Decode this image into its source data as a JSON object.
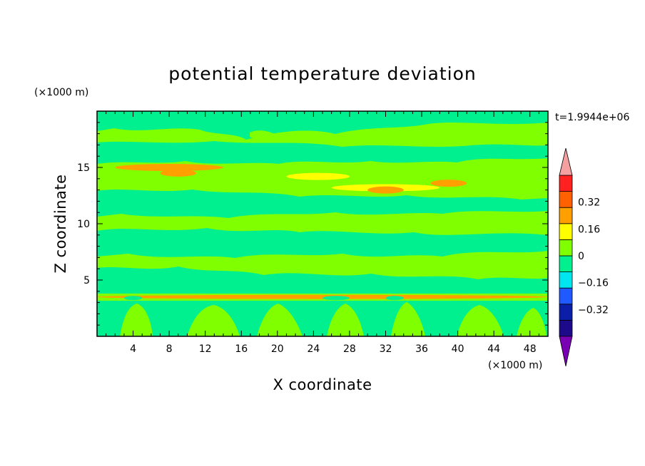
{
  "chart_data": {
    "type": "heatmap",
    "title": "potential temperature deviation",
    "xlabel": "X coordinate",
    "ylabel": "Z coordinate",
    "x_unit": "(×1000 m)",
    "y_unit": "(×1000 m)",
    "time_label": "t=1.9944e+06",
    "xlim": [
      0,
      50
    ],
    "ylim": [
      0,
      20
    ],
    "x_ticks": [
      4,
      8,
      12,
      16,
      20,
      24,
      28,
      32,
      36,
      40,
      44,
      48
    ],
    "y_ticks": [
      5,
      10,
      15
    ],
    "colorbar": {
      "levels": [
        -0.48,
        -0.4,
        -0.32,
        -0.24,
        -0.16,
        -0.08,
        0,
        0.08,
        0.16,
        0.24,
        0.32,
        0.4,
        0.48
      ],
      "labeled_levels": [
        0.32,
        0.16,
        0,
        -0.16,
        -0.32
      ],
      "colors": [
        "#1c0a8a",
        "#0a1ea8",
        "#1e5aff",
        "#00e6f0",
        "#00f090",
        "#80ff00",
        "#ffff00",
        "#ffa000",
        "#ff6000",
        "#ff2020"
      ],
      "under_color": "#7a00b4",
      "over_color": "#f4a0a0"
    },
    "bands": [
      {
        "z": 15.0,
        "value": 0.08,
        "x_range": [
          2,
          14
        ]
      },
      {
        "z": 14.5,
        "value": 0.1,
        "x_range": [
          7,
          11
        ]
      },
      {
        "z": 14.2,
        "value": 0.02,
        "x_range": [
          21,
          28
        ]
      },
      {
        "z": 13.2,
        "value": 0.04,
        "x_range": [
          26,
          38
        ]
      },
      {
        "z": 13.0,
        "value": 0.1,
        "x_range": [
          30,
          34
        ]
      },
      {
        "z": 13.6,
        "value": 0.08,
        "x_range": [
          37,
          41
        ]
      },
      {
        "z": 3.5,
        "value": 0.12,
        "x_range": [
          0,
          50
        ]
      },
      {
        "z": 3.4,
        "value": -0.14,
        "x_range": [
          3,
          5
        ]
      },
      {
        "z": 3.4,
        "value": -0.14,
        "x_range": [
          25,
          28
        ]
      },
      {
        "z": 3.4,
        "value": -0.14,
        "x_range": [
          32,
          34
        ]
      }
    ]
  }
}
